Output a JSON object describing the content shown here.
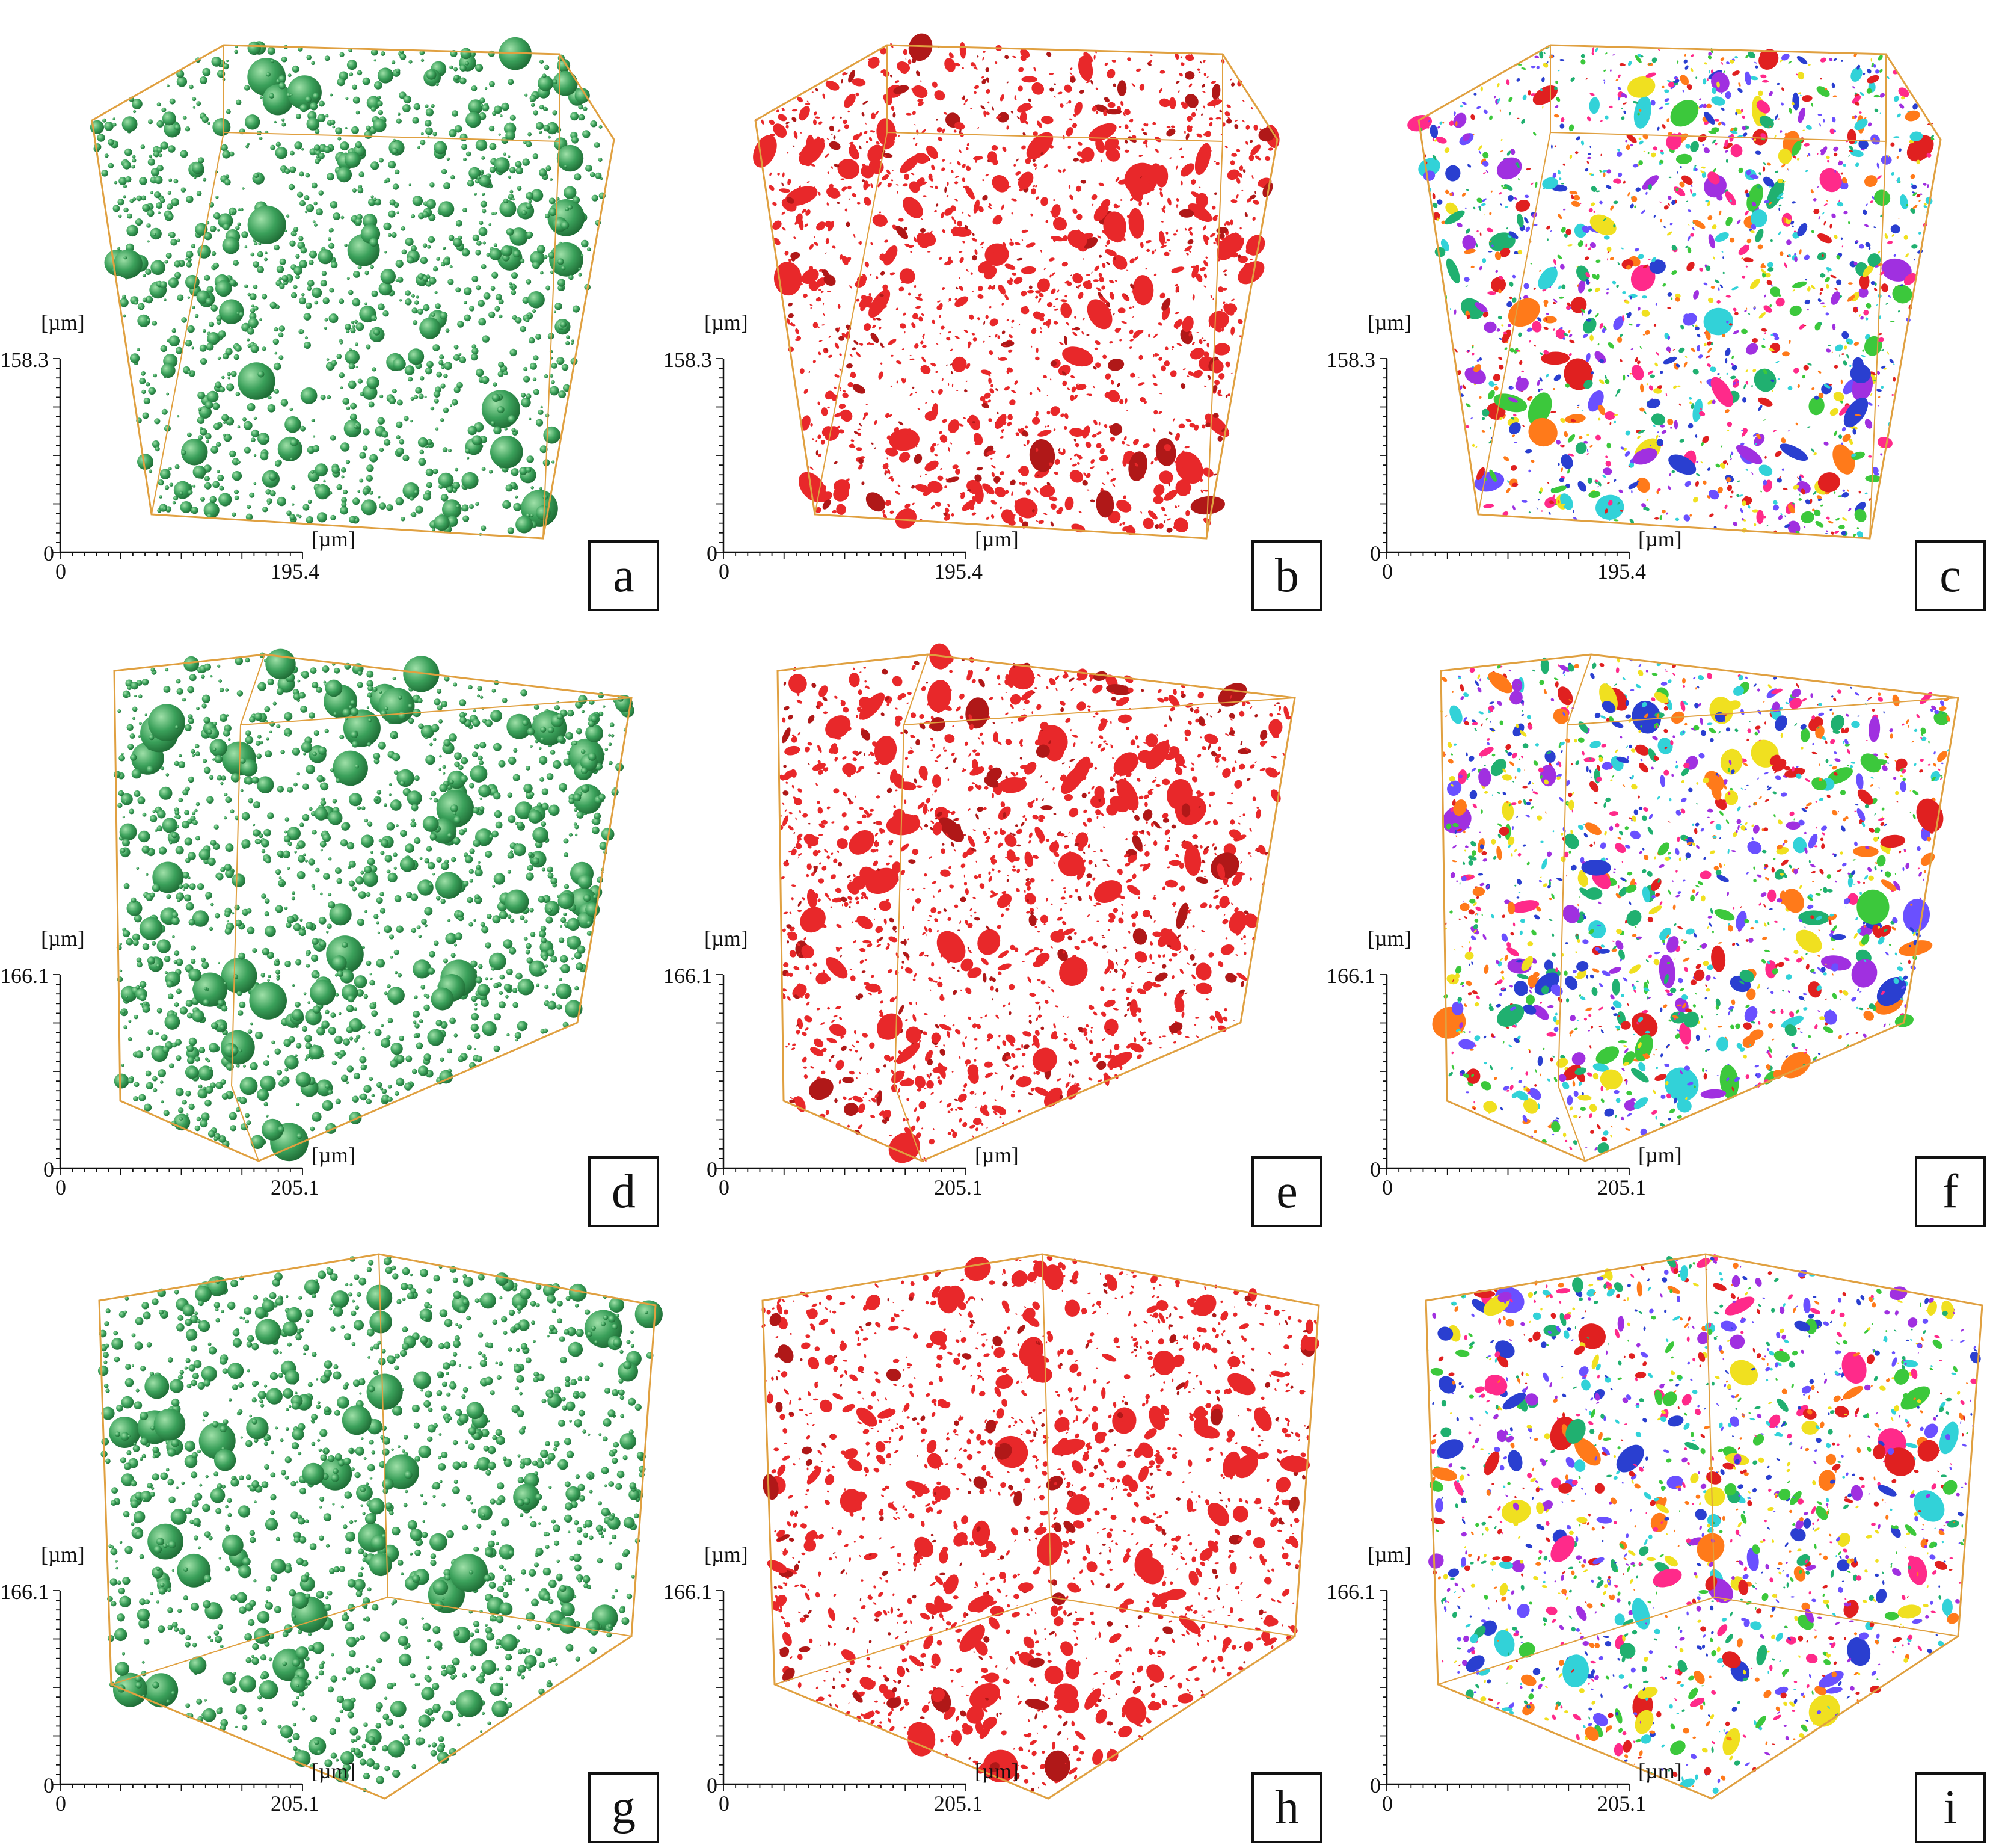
{
  "figure": {
    "background": "#ffffff",
    "box_color": "#e0a040",
    "panels": [
      {
        "letter": "a",
        "render": "spheres",
        "color": "#3aa05a",
        "y_unit": "[µm]",
        "x_unit": "[µm]",
        "y_max": "158.3",
        "x_max": "195.4",
        "origin_y": "0",
        "origin_x": "0"
      },
      {
        "letter": "b",
        "render": "particles",
        "color": "#e8282a",
        "y_unit": "[µm]",
        "x_unit": "[µm]",
        "y_max": "158.3",
        "x_max": "195.4",
        "origin_y": "0",
        "origin_x": "0"
      },
      {
        "letter": "c",
        "render": "labels",
        "color": "multicolor",
        "y_unit": "[µm]",
        "x_unit": "[µm]",
        "y_max": "158.3",
        "x_max": "195.4",
        "origin_y": "0",
        "origin_x": "0"
      },
      {
        "letter": "d",
        "render": "spheres",
        "color": "#3aa05a",
        "y_unit": "[µm]",
        "x_unit": "[µm]",
        "y_max": "166.1",
        "x_max": "205.1",
        "origin_y": "0",
        "origin_x": "0"
      },
      {
        "letter": "e",
        "render": "particles",
        "color": "#e8282a",
        "y_unit": "[µm]",
        "x_unit": "[µm]",
        "y_max": "166.1",
        "x_max": "205.1",
        "origin_y": "0",
        "origin_x": "0"
      },
      {
        "letter": "f",
        "render": "labels",
        "color": "multicolor",
        "y_unit": "[µm]",
        "x_unit": "[µm]",
        "y_max": "166.1",
        "x_max": "205.1",
        "origin_y": "0",
        "origin_x": "0"
      },
      {
        "letter": "g",
        "render": "spheres",
        "color": "#3aa05a",
        "y_unit": "[µm]",
        "x_unit": "[µm]",
        "y_max": "166.1",
        "x_max": "205.1",
        "origin_y": "0",
        "origin_x": "0"
      },
      {
        "letter": "h",
        "render": "particles",
        "color": "#e8282a",
        "y_unit": "[µm]",
        "x_unit": "[µm]",
        "y_max": "166.1",
        "x_max": "205.1",
        "origin_y": "0",
        "origin_x": "0"
      },
      {
        "letter": "i",
        "render": "labels",
        "color": "multicolor",
        "y_unit": "[µm]",
        "x_unit": "[µm]",
        "y_max": "166.1",
        "x_max": "205.1",
        "origin_y": "0",
        "origin_x": "0"
      }
    ],
    "label_palette": [
      "#2a3fd0",
      "#32d2d8",
      "#3cc83c",
      "#f0e020",
      "#ff2a8a",
      "#ff7a1a",
      "#a030e0",
      "#20b070",
      "#e02020",
      "#6a50ff"
    ]
  }
}
